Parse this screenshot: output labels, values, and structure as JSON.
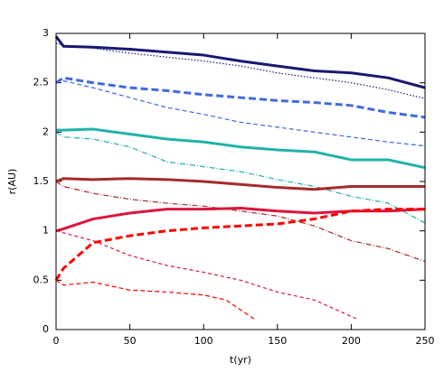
{
  "chart_data": {
    "type": "line",
    "xlabel": "t(yr)",
    "ylabel": "r(AU)",
    "xlim": [
      0,
      250
    ],
    "ylim": [
      0,
      3
    ],
    "xticks": [
      0,
      50,
      100,
      150,
      200,
      250
    ],
    "yticks": [
      0,
      0.5,
      1,
      1.5,
      2,
      2.5,
      3
    ],
    "x": [
      0,
      5,
      25,
      50,
      75,
      100,
      125,
      150,
      175,
      200,
      225,
      250
    ],
    "series": [
      {
        "color": "#191970",
        "width": 3,
        "dash": "none",
        "values": [
          2.97,
          2.87,
          2.86,
          2.84,
          2.81,
          2.78,
          2.72,
          2.67,
          2.62,
          2.6,
          2.55,
          2.45
        ]
      },
      {
        "color": "#191970",
        "width": 1.2,
        "dash": "1.5 2",
        "values": [
          2.9,
          2.88,
          2.85,
          2.8,
          2.76,
          2.72,
          2.67,
          2.6,
          2.55,
          2.5,
          2.43,
          2.34
        ]
      },
      {
        "color": "#4169e1",
        "width": 3,
        "dash": "8 4",
        "values": [
          2.5,
          2.55,
          2.5,
          2.45,
          2.42,
          2.38,
          2.35,
          2.32,
          2.3,
          2.27,
          2.2,
          2.15
        ]
      },
      {
        "color": "#4169e1",
        "width": 1.2,
        "dash": "5 3",
        "values": [
          2.5,
          2.52,
          2.45,
          2.35,
          2.25,
          2.18,
          2.1,
          2.05,
          2.0,
          1.95,
          1.9,
          1.86
        ]
      },
      {
        "color": "#20b2aa",
        "width": 3,
        "dash": "none",
        "values": [
          2.02,
          2.02,
          2.03,
          1.98,
          1.93,
          1.9,
          1.85,
          1.82,
          1.8,
          1.72,
          1.72,
          1.64
        ]
      },
      {
        "color": "#20b2aa",
        "width": 1.2,
        "dash": "6 2 1 2",
        "values": [
          2.0,
          1.95,
          1.93,
          1.85,
          1.7,
          1.65,
          1.6,
          1.52,
          1.45,
          1.35,
          1.28,
          1.08
        ]
      },
      {
        "color": "#a52a2a",
        "width": 3,
        "dash": "none",
        "values": [
          1.5,
          1.53,
          1.52,
          1.53,
          1.52,
          1.5,
          1.47,
          1.44,
          1.42,
          1.45,
          1.45,
          1.45
        ]
      },
      {
        "color": "#a52a2a",
        "width": 1.2,
        "dash": "6 2 1 2",
        "values": [
          1.5,
          1.45,
          1.38,
          1.32,
          1.28,
          1.25,
          1.2,
          1.15,
          1.05,
          0.9,
          0.82,
          0.69
        ]
      },
      {
        "color": "#dc143c",
        "width": 3,
        "dash": "none",
        "values": [
          1.0,
          1.02,
          1.12,
          1.18,
          1.22,
          1.22,
          1.23,
          1.2,
          1.18,
          1.2,
          1.2,
          1.22
        ]
      },
      {
        "color": "#dc143c",
        "width": 1.2,
        "dash": "4 3",
        "x": [
          0,
          5,
          25,
          50,
          75,
          100,
          125,
          150,
          175,
          190,
          205
        ],
        "values": [
          1.0,
          0.98,
          0.9,
          0.75,
          0.65,
          0.58,
          0.5,
          0.38,
          0.3,
          0.2,
          0.1
        ]
      },
      {
        "color": "#ff0000",
        "width": 3,
        "dash": "8 4",
        "values": [
          0.5,
          0.62,
          0.88,
          0.95,
          1.0,
          1.03,
          1.05,
          1.07,
          1.12,
          1.2,
          1.22,
          1.22
        ]
      },
      {
        "color": "#ff0000",
        "width": 1.2,
        "dash": "5 3",
        "x": [
          0,
          5,
          25,
          50,
          75,
          100,
          115,
          125,
          135
        ],
        "values": [
          0.5,
          0.45,
          0.48,
          0.4,
          0.38,
          0.35,
          0.3,
          0.2,
          0.1
        ]
      }
    ]
  }
}
